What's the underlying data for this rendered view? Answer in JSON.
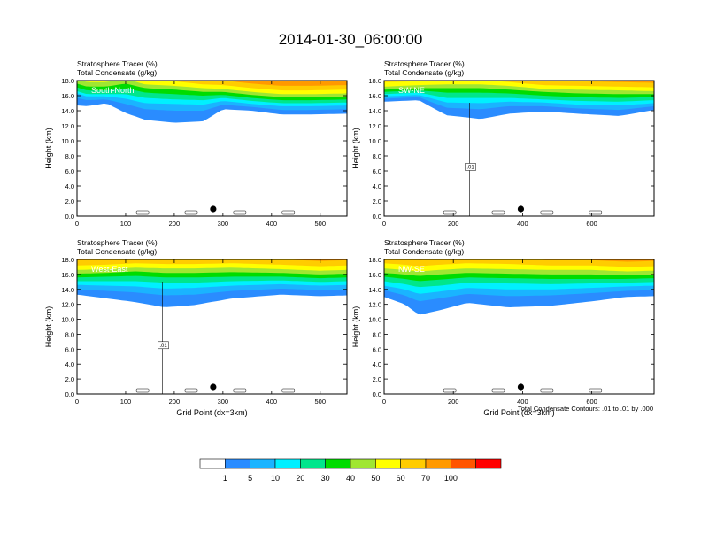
{
  "title": "2014-01-30_06:00:00",
  "colors": {
    "levels": [
      "#ffffff",
      "#2a8cff",
      "#1ab4ff",
      "#00f0ff",
      "#00e68c",
      "#00dc00",
      "#a0e632",
      "#ffff00",
      "#ffcc00",
      "#ff9900",
      "#ff5500",
      "#ff0000"
    ]
  },
  "colorbar": {
    "labels": [
      "1",
      "5",
      "10",
      "20",
      "30",
      "40",
      "50",
      "60",
      "70",
      "100"
    ]
  },
  "footnote": "Total Condensate Contours: .01 to .01 by .000",
  "chart_data": [
    {
      "type": "heatmap",
      "panel_label": "South-North",
      "title_line1": "Stratosphere Tracer   (%)",
      "title_line2": "Total Condensate   (g/kg)",
      "ylabel": "Height (km)",
      "xlabel": "",
      "xlim": [
        0,
        555
      ],
      "ylim": [
        0,
        18
      ],
      "xticks": [
        0,
        100,
        200,
        300,
        400,
        500
      ],
      "yticks": [
        "0.0",
        "2.0",
        "4.0",
        "6.0",
        "8.0",
        "10.0",
        "12.0",
        "14.0",
        "16.0",
        "18.0"
      ],
      "marker_x": 280,
      "contour_label": "",
      "profile": [
        {
          "x": 0,
          "b": 14.7,
          "s": [
            1.0,
            0.6,
            0.3,
            0.5,
            0.5,
            0.6,
            0.7,
            0.8,
            0.5
          ]
        },
        {
          "x": 20,
          "b": 14.6,
          "s": [
            0.8,
            0.5,
            0.3,
            0.5,
            0.5,
            0.6,
            0.8,
            0.9,
            0.6
          ]
        },
        {
          "x": 60,
          "b": 15.0,
          "s": [
            0.5,
            0.4,
            0.3,
            0.5,
            0.5,
            0.6,
            0.7,
            0.8,
            0.6
          ]
        },
        {
          "x": 100,
          "b": 13.7,
          "s": [
            1.2,
            0.7,
            0.6,
            0.8,
            0.6,
            0.6,
            0.6,
            0.7,
            0.5
          ]
        },
        {
          "x": 140,
          "b": 12.8,
          "s": [
            1.4,
            0.8,
            0.7,
            0.7,
            0.6,
            0.5,
            0.6,
            0.7,
            0.6
          ]
        },
        {
          "x": 200,
          "b": 12.4,
          "s": [
            1.6,
            0.9,
            0.6,
            0.7,
            0.6,
            0.5,
            0.6,
            0.6,
            0.6
          ]
        },
        {
          "x": 260,
          "b": 12.6,
          "s": [
            1.4,
            0.8,
            0.6,
            0.6,
            0.5,
            0.5,
            0.5,
            0.6,
            0.6
          ]
        },
        {
          "x": 300,
          "b": 14.2,
          "s": [
            0.6,
            0.5,
            0.4,
            0.4,
            0.4,
            0.4,
            0.5,
            0.6,
            0.6
          ]
        },
        {
          "x": 360,
          "b": 14.0,
          "s": [
            0.5,
            0.4,
            0.4,
            0.4,
            0.4,
            0.4,
            0.5,
            0.6,
            0.6
          ]
        },
        {
          "x": 420,
          "b": 13.5,
          "s": [
            0.6,
            0.5,
            0.4,
            0.4,
            0.4,
            0.4,
            0.5,
            0.6,
            0.7
          ]
        },
        {
          "x": 480,
          "b": 13.5,
          "s": [
            0.6,
            0.5,
            0.4,
            0.4,
            0.4,
            0.4,
            0.5,
            0.6,
            0.7
          ]
        },
        {
          "x": 555,
          "b": 13.6,
          "s": [
            0.6,
            0.5,
            0.4,
            0.4,
            0.4,
            0.4,
            0.5,
            0.6,
            0.7
          ]
        }
      ]
    },
    {
      "type": "heatmap",
      "panel_label": "SW-NE",
      "title_line1": "Stratosphere Tracer   (%)",
      "title_line2": "Total Condensate   (g/kg)",
      "ylabel": "Height (km)",
      "xlabel": "",
      "xlim": [
        0,
        780
      ],
      "ylim": [
        0,
        18
      ],
      "xticks": [
        0,
        200,
        400,
        600
      ],
      "yticks": [
        "0.0",
        "2.0",
        "4.0",
        "6.0",
        "8.0",
        "10.0",
        "12.0",
        "14.0",
        "16.0",
        "18.0"
      ],
      "marker_x": 395,
      "contour_label": ".01",
      "profile": [
        {
          "x": 0,
          "b": 15.2,
          "s": [
            0.4,
            0.3,
            0.3,
            0.3,
            0.3,
            0.4,
            0.6,
            0.8,
            0.5
          ]
        },
        {
          "x": 100,
          "b": 15.4,
          "s": [
            0.4,
            0.3,
            0.3,
            0.3,
            0.3,
            0.4,
            0.5,
            0.7,
            0.5
          ]
        },
        {
          "x": 180,
          "b": 13.4,
          "s": [
            1.0,
            0.7,
            0.6,
            0.7,
            0.6,
            0.5,
            0.6,
            0.7,
            0.5
          ]
        },
        {
          "x": 280,
          "b": 12.9,
          "s": [
            1.3,
            0.8,
            0.7,
            0.7,
            0.6,
            0.5,
            0.6,
            0.6,
            0.6
          ]
        },
        {
          "x": 360,
          "b": 13.6,
          "s": [
            1.0,
            0.6,
            0.5,
            0.6,
            0.5,
            0.5,
            0.5,
            0.6,
            0.6
          ]
        },
        {
          "x": 460,
          "b": 13.9,
          "s": [
            0.7,
            0.5,
            0.4,
            0.5,
            0.5,
            0.4,
            0.5,
            0.6,
            0.6
          ]
        },
        {
          "x": 560,
          "b": 13.6,
          "s": [
            0.7,
            0.5,
            0.5,
            0.5,
            0.5,
            0.5,
            0.5,
            0.6,
            0.6
          ]
        },
        {
          "x": 680,
          "b": 13.3,
          "s": [
            0.8,
            0.6,
            0.5,
            0.5,
            0.5,
            0.5,
            0.5,
            0.6,
            0.7
          ]
        },
        {
          "x": 780,
          "b": 14.1,
          "s": [
            0.5,
            0.4,
            0.4,
            0.4,
            0.4,
            0.4,
            0.5,
            0.6,
            0.6
          ]
        }
      ]
    },
    {
      "type": "heatmap",
      "panel_label": "West-East",
      "title_line1": "Stratosphere Tracer   (%)",
      "title_line2": "Total Condensate   (g/kg)",
      "ylabel": "Height (km)",
      "xlabel": "Grid Point (dx=3km)",
      "xlim": [
        0,
        555
      ],
      "ylim": [
        0,
        18
      ],
      "xticks": [
        0,
        100,
        200,
        300,
        400,
        500
      ],
      "yticks": [
        "0.0",
        "2.0",
        "4.0",
        "6.0",
        "8.0",
        "10.0",
        "12.0",
        "14.0",
        "16.0",
        "18.0"
      ],
      "marker_x": 280,
      "contour_label": ".01",
      "profile": [
        {
          "x": 0,
          "b": 13.3,
          "s": [
            0.7,
            0.6,
            0.5,
            0.5,
            0.5,
            0.5,
            0.6,
            0.7,
            0.6
          ]
        },
        {
          "x": 60,
          "b": 12.8,
          "s": [
            1.0,
            0.7,
            0.6,
            0.6,
            0.5,
            0.5,
            0.6,
            0.7,
            0.6
          ]
        },
        {
          "x": 120,
          "b": 12.3,
          "s": [
            1.3,
            0.8,
            0.7,
            0.7,
            0.6,
            0.5,
            0.6,
            0.7,
            0.6
          ]
        },
        {
          "x": 180,
          "b": 11.6,
          "s": [
            1.6,
            0.9,
            0.8,
            0.7,
            0.6,
            0.6,
            0.6,
            0.7,
            0.6
          ]
        },
        {
          "x": 240,
          "b": 11.9,
          "s": [
            1.4,
            0.9,
            0.7,
            0.7,
            0.6,
            0.6,
            0.6,
            0.7,
            0.6
          ]
        },
        {
          "x": 320,
          "b": 12.8,
          "s": [
            1.0,
            0.7,
            0.6,
            0.6,
            0.6,
            0.6,
            0.6,
            0.7,
            0.6
          ]
        },
        {
          "x": 420,
          "b": 13.3,
          "s": [
            0.8,
            0.6,
            0.5,
            0.5,
            0.5,
            0.5,
            0.6,
            0.7,
            0.6
          ]
        },
        {
          "x": 500,
          "b": 13.1,
          "s": [
            0.8,
            0.6,
            0.5,
            0.5,
            0.5,
            0.5,
            0.6,
            0.7,
            0.6
          ]
        },
        {
          "x": 555,
          "b": 13.2,
          "s": [
            0.8,
            0.6,
            0.5,
            0.5,
            0.5,
            0.5,
            0.6,
            0.7,
            0.6
          ]
        }
      ]
    },
    {
      "type": "heatmap",
      "panel_label": "NW-SE",
      "title_line1": "Stratosphere Tracer   (%)",
      "title_line2": "Total Condensate   (g/kg)",
      "ylabel": "Height (km)",
      "xlabel": "Grid Point (dx=3km)",
      "xlim": [
        0,
        780
      ],
      "ylim": [
        0,
        18
      ],
      "xticks": [
        0,
        200,
        400,
        600
      ],
      "yticks": [
        "0.0",
        "2.0",
        "4.0",
        "6.0",
        "8.0",
        "10.0",
        "12.0",
        "14.0",
        "16.0",
        "18.0"
      ],
      "marker_x": 395,
      "contour_label": "",
      "profile": [
        {
          "x": 0,
          "b": 13.0,
          "s": [
            0.9,
            0.6,
            0.6,
            0.6,
            0.5,
            0.6,
            0.7,
            0.8,
            0.7
          ]
        },
        {
          "x": 60,
          "b": 12.0,
          "s": [
            1.2,
            0.8,
            0.7,
            0.7,
            0.6,
            0.6,
            0.7,
            0.9,
            0.8
          ]
        },
        {
          "x": 100,
          "b": 10.6,
          "s": [
            1.8,
            1.0,
            0.9,
            0.8,
            0.7,
            0.6,
            0.7,
            0.8,
            0.8
          ]
        },
        {
          "x": 160,
          "b": 11.2,
          "s": [
            1.6,
            0.9,
            0.8,
            0.8,
            0.7,
            0.6,
            0.7,
            0.8,
            0.8
          ]
        },
        {
          "x": 240,
          "b": 12.2,
          "s": [
            1.2,
            0.8,
            0.7,
            0.7,
            0.6,
            0.6,
            0.7,
            0.8,
            0.7
          ]
        },
        {
          "x": 360,
          "b": 11.6,
          "s": [
            1.5,
            0.9,
            0.8,
            0.7,
            0.6,
            0.6,
            0.7,
            0.7,
            0.7
          ]
        },
        {
          "x": 480,
          "b": 11.8,
          "s": [
            1.4,
            0.8,
            0.7,
            0.7,
            0.6,
            0.6,
            0.6,
            0.7,
            0.7
          ]
        },
        {
          "x": 600,
          "b": 12.4,
          "s": [
            1.1,
            0.7,
            0.6,
            0.6,
            0.6,
            0.6,
            0.6,
            0.7,
            0.7
          ]
        },
        {
          "x": 700,
          "b": 13.0,
          "s": [
            0.8,
            0.6,
            0.5,
            0.5,
            0.5,
            0.5,
            0.6,
            0.7,
            0.7
          ]
        },
        {
          "x": 780,
          "b": 13.1,
          "s": [
            0.8,
            0.6,
            0.5,
            0.5,
            0.5,
            0.5,
            0.6,
            0.7,
            0.7
          ]
        }
      ]
    }
  ]
}
